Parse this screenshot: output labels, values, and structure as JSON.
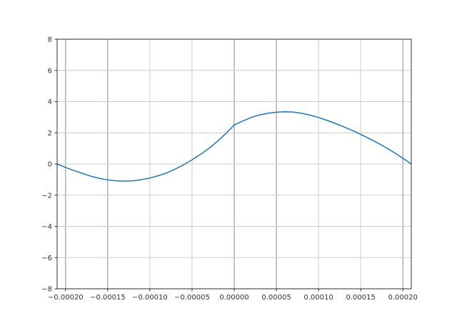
{
  "chart_data": {
    "type": "line",
    "title": "",
    "xlabel": "",
    "ylabel": "",
    "xlim": [
      -0.00021,
      0.00021
    ],
    "ylim": [
      -8,
      8
    ],
    "grid": true,
    "xticks": [
      -0.0002,
      -0.00015,
      -0.0001,
      -5e-05,
      0,
      5e-05,
      0.0001,
      0.00015,
      0.0002
    ],
    "xtick_labels": [
      "−0.00020",
      "−0.00015",
      "−0.00010",
      "−0.00005",
      "0.00000",
      "0.00005",
      "0.00010",
      "0.00015",
      "0.00020"
    ],
    "yticks": [
      -8,
      -6,
      -4,
      -2,
      0,
      2,
      4,
      6,
      8
    ],
    "ytick_labels": [
      "−8",
      "−6",
      "−4",
      "−2",
      "0",
      "2",
      "4",
      "6",
      "8"
    ],
    "line_color": "#1f77b4",
    "series": [
      {
        "x": [
          -0.00021,
          -0.0002,
          -0.00019,
          -0.00018,
          -0.00017,
          -0.00016,
          -0.00015,
          -0.00014,
          -0.00013,
          -0.00012,
          -0.00011,
          -0.0001,
          -9e-05,
          -8e-05,
          -7e-05,
          -6e-05,
          -5e-05,
          -4e-05,
          -3e-05,
          -2e-05,
          -1e-05,
          0,
          1e-05,
          2e-05,
          3e-05,
          4e-05,
          5e-05,
          6e-05,
          7e-05,
          8e-05,
          9e-05,
          0.0001,
          0.00011,
          0.00012,
          0.00013,
          0.00014,
          0.00015,
          0.00016,
          0.00017,
          0.00018,
          0.00019,
          0.0002,
          0.00021
        ],
        "y": [
          0,
          -0.22,
          -0.42,
          -0.6,
          -0.78,
          -0.92,
          -1.02,
          -1.08,
          -1.1,
          -1.08,
          -1.0,
          -0.9,
          -0.75,
          -0.57,
          -0.33,
          -0.05,
          0.27,
          0.62,
          1.0,
          1.45,
          1.95,
          2.5,
          2.75,
          2.98,
          3.15,
          3.25,
          3.32,
          3.35,
          3.33,
          3.25,
          3.13,
          2.98,
          2.8,
          2.6,
          2.38,
          2.15,
          1.9,
          1.63,
          1.35,
          1.05,
          0.72,
          0.37,
          0
        ]
      }
    ]
  }
}
